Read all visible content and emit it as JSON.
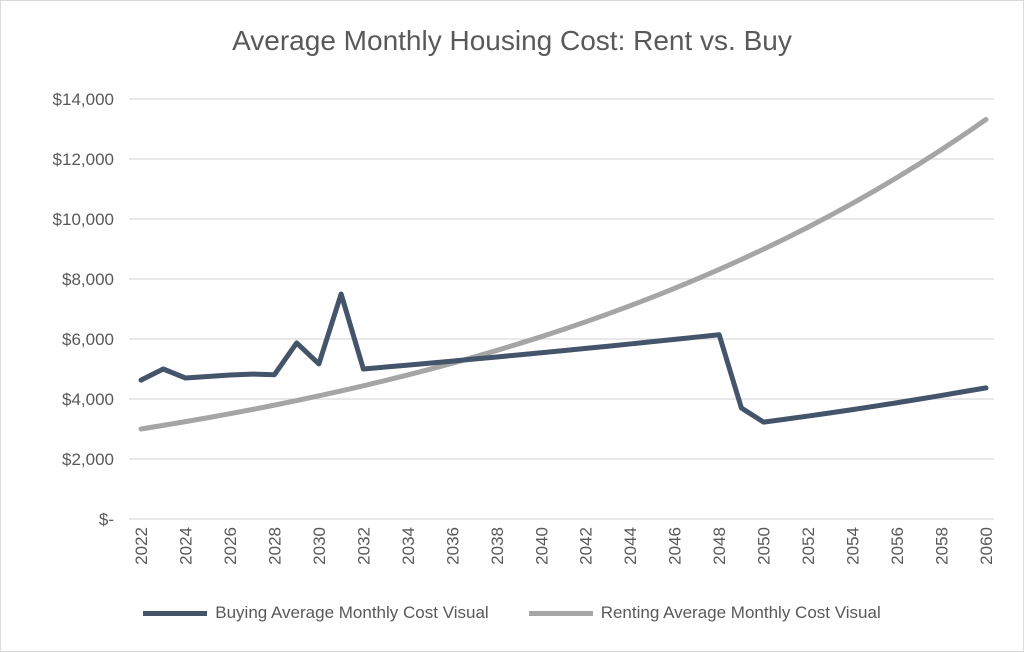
{
  "chart_data": {
    "type": "line",
    "title": "Average Monthly Housing Cost: Rent vs. Buy",
    "xlabel": "",
    "ylabel": "",
    "x": [
      2022,
      2023,
      2024,
      2025,
      2026,
      2027,
      2028,
      2029,
      2030,
      2031,
      2032,
      2033,
      2034,
      2035,
      2036,
      2037,
      2038,
      2039,
      2040,
      2041,
      2042,
      2043,
      2044,
      2045,
      2046,
      2047,
      2048,
      2049,
      2050,
      2051,
      2052,
      2053,
      2054,
      2055,
      2056,
      2057,
      2058,
      2059,
      2060
    ],
    "x_tick_labels": [
      "2022",
      "2024",
      "2026",
      "2028",
      "2030",
      "2032",
      "2034",
      "2036",
      "2038",
      "2040",
      "2042",
      "2044",
      "2046",
      "2048",
      "2050",
      "2052",
      "2054",
      "2056",
      "2058",
      "2060"
    ],
    "y_tick_labels": [
      "$-",
      "$2,000",
      "$4,000",
      "$6,000",
      "$8,000",
      "$10,000",
      "$12,000",
      "$14,000"
    ],
    "ylim": [
      0,
      14000
    ],
    "grid": true,
    "legend": "bottom",
    "series": [
      {
        "name": "Buying Average Monthly Cost Visual",
        "color": "#44546a",
        "values": [
          4630,
          5000,
          4700,
          4750,
          4800,
          4830,
          4810,
          5870,
          5170,
          7500,
          5000,
          5065,
          5130,
          5197,
          5264,
          5332,
          5401,
          5471,
          5542,
          5614,
          5687,
          5760,
          5835,
          5911,
          5987,
          6065,
          6143,
          3700,
          3230,
          3330,
          3432,
          3538,
          3647,
          3760,
          3876,
          3996,
          4119,
          4246,
          4370
        ]
      },
      {
        "name": "Renting Average Monthly Cost Visual",
        "color": "#a5a5a5",
        "values": [
          3000,
          3120,
          3245,
          3375,
          3510,
          3650,
          3796,
          3948,
          4106,
          4270,
          4441,
          4618,
          4803,
          4995,
          5195,
          5403,
          5619,
          5844,
          6077,
          6320,
          6573,
          6836,
          7110,
          7394,
          7690,
          7998,
          8318,
          8650,
          8996,
          9356,
          9730,
          10120,
          10524,
          10945,
          11383,
          11838,
          12312,
          12805,
          13317
        ]
      }
    ]
  }
}
